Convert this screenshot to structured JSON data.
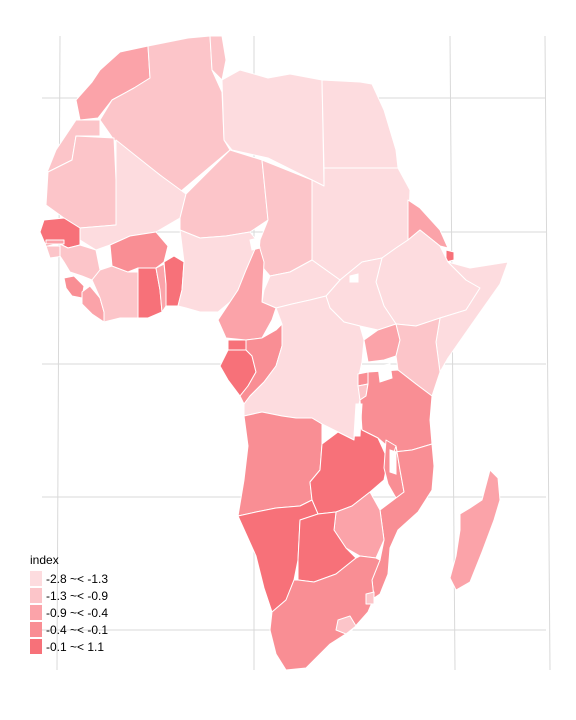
{
  "map": {
    "legend_title": "index",
    "classes": [
      {
        "label": "-2.8 ~< -1.3",
        "color": "#fddcdf"
      },
      {
        "label": "-1.3 ~< -0.9",
        "color": "#fcc5c9"
      },
      {
        "label": "-0.9 ~< -0.4",
        "color": "#fba3a9"
      },
      {
        "label": "-0.4 ~< -0.1",
        "color": "#f98e94"
      },
      {
        "label": "-0.1 ~< 1.1",
        "color": "#f77179"
      }
    ],
    "border_color": "#ffffff",
    "graticule_color": "#d9d9d9",
    "background": "#ffffff"
  }
}
